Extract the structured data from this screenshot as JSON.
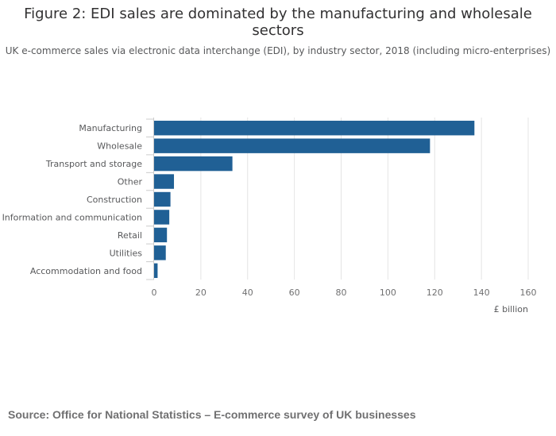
{
  "chart_data": {
    "type": "bar",
    "orientation": "horizontal",
    "title": "Figure 2: EDI sales are dominated by the manufacturing and wholesale sectors",
    "subtitle": "UK e-commerce sales via electronic data interchange (EDI), by industry sector, 2018 (including micro-enterprises)",
    "categories": [
      "Manufacturing",
      "Wholesale",
      "Transport and storage",
      "Other",
      "Construction",
      "Information and communication",
      "Retail",
      "Utilities",
      "Accommodation and food"
    ],
    "values": [
      137,
      118,
      33.5,
      8.5,
      7,
      6.5,
      5.5,
      5,
      1.5
    ],
    "xlabel": "£ billion",
    "ylabel": "",
    "xlim": [
      0,
      160
    ],
    "xticks": [
      "0",
      "20",
      "40",
      "60",
      "80",
      "100",
      "120",
      "140",
      "160"
    ],
    "grid": true,
    "bar_color": "#206095"
  },
  "source": "Source: Office for National Statistics – E-commerce survey of UK businesses"
}
